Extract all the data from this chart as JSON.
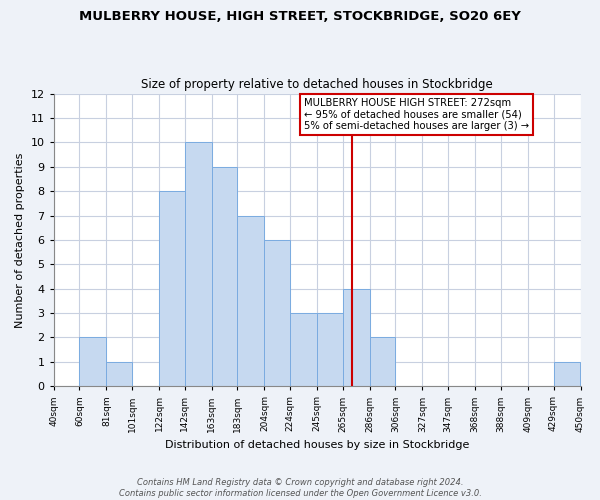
{
  "title": "MULBERRY HOUSE, HIGH STREET, STOCKBRIDGE, SO20 6EY",
  "subtitle": "Size of property relative to detached houses in Stockbridge",
  "xlabel": "Distribution of detached houses by size in Stockbridge",
  "ylabel": "Number of detached properties",
  "bar_edges": [
    40,
    60,
    81,
    101,
    122,
    142,
    163,
    183,
    204,
    224,
    245,
    265,
    286,
    306,
    327,
    347,
    368,
    388,
    409,
    429,
    450
  ],
  "bar_heights": [
    0,
    2,
    1,
    0,
    8,
    10,
    9,
    7,
    6,
    3,
    3,
    4,
    2,
    0,
    0,
    0,
    0,
    0,
    0,
    1,
    1
  ],
  "bar_color": "#c6d9f0",
  "bar_edgecolor": "#7aabe0",
  "tick_labels": [
    "40sqm",
    "60sqm",
    "81sqm",
    "101sqm",
    "122sqm",
    "142sqm",
    "163sqm",
    "183sqm",
    "204sqm",
    "224sqm",
    "245sqm",
    "265sqm",
    "286sqm",
    "306sqm",
    "327sqm",
    "347sqm",
    "368sqm",
    "388sqm",
    "409sqm",
    "429sqm",
    "450sqm"
  ],
  "vline_x": 272,
  "vline_color": "#cc0000",
  "ylim": [
    0,
    12
  ],
  "yticks": [
    0,
    1,
    2,
    3,
    4,
    5,
    6,
    7,
    8,
    9,
    10,
    11,
    12
  ],
  "annotation_title": "MULBERRY HOUSE HIGH STREET: 272sqm",
  "annotation_line1": "← 95% of detached houses are smaller (54)",
  "annotation_line2": "5% of semi-detached houses are larger (3) →",
  "footer1": "Contains HM Land Registry data © Crown copyright and database right 2024.",
  "footer2": "Contains public sector information licensed under the Open Government Licence v3.0.",
  "bg_color": "#eef2f8",
  "plot_bg_color": "#ffffff",
  "grid_color": "#c8d0e0"
}
